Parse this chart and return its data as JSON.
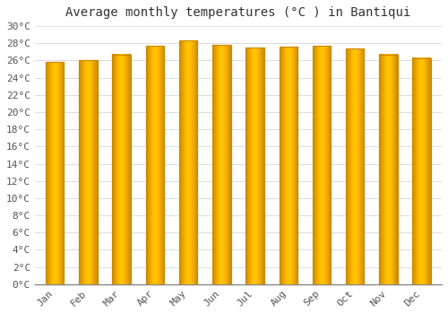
{
  "title": "Average monthly temperatures (°C ) in Bantiqui",
  "months": [
    "Jan",
    "Feb",
    "Mar",
    "Apr",
    "May",
    "Jun",
    "Jul",
    "Aug",
    "Sep",
    "Oct",
    "Nov",
    "Dec"
  ],
  "temperatures": [
    25.8,
    26.0,
    26.7,
    27.7,
    28.3,
    27.8,
    27.5,
    27.6,
    27.7,
    27.4,
    26.7,
    26.3
  ],
  "bar_color": "#FFA500",
  "bar_edge_color": "#CC8800",
  "ylim": [
    0,
    30
  ],
  "ytick_step": 2,
  "background_color": "#FFFFFF",
  "plot_bg_color": "#FFFFFF",
  "grid_color": "#DDDDDD",
  "title_fontsize": 10,
  "tick_fontsize": 8,
  "bar_width": 0.55
}
